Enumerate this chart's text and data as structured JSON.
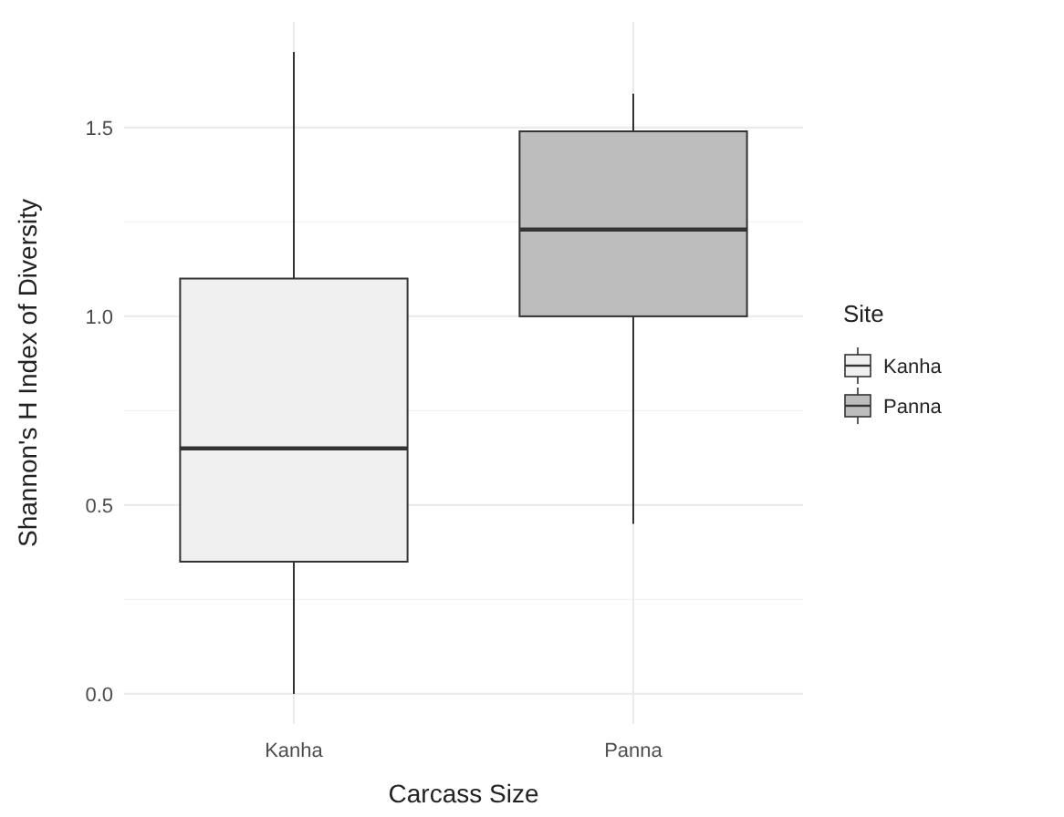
{
  "chart_data": {
    "type": "box",
    "xlabel": "Carcass Size",
    "ylabel": "Shannon's H Index of Diversity",
    "legend_title": "Site",
    "legend": "right",
    "grid": true,
    "categories": [
      "Kanha",
      "Panna"
    ],
    "ylim": [
      -0.08,
      1.78
    ],
    "yticks": [
      {
        "value": 0,
        "label": "0.0"
      },
      {
        "value": 0.5,
        "label": "0.5"
      },
      {
        "value": 1,
        "label": "1.0"
      },
      {
        "value": 1.5,
        "label": "1.5"
      }
    ],
    "series": [
      {
        "name": "Kanha",
        "color": "#f0f0f0",
        "boxes": [
          {
            "low": 0,
            "q1": 0.35,
            "median": 0.65,
            "q3": 1.1,
            "high": 1.7
          },
          null
        ]
      },
      {
        "name": "Panna",
        "color": "#bdbdbd",
        "boxes": [
          null,
          {
            "low": 0.45,
            "q1": 1.0,
            "median": 1.23,
            "q3": 1.49,
            "high": 1.59
          }
        ]
      }
    ]
  }
}
